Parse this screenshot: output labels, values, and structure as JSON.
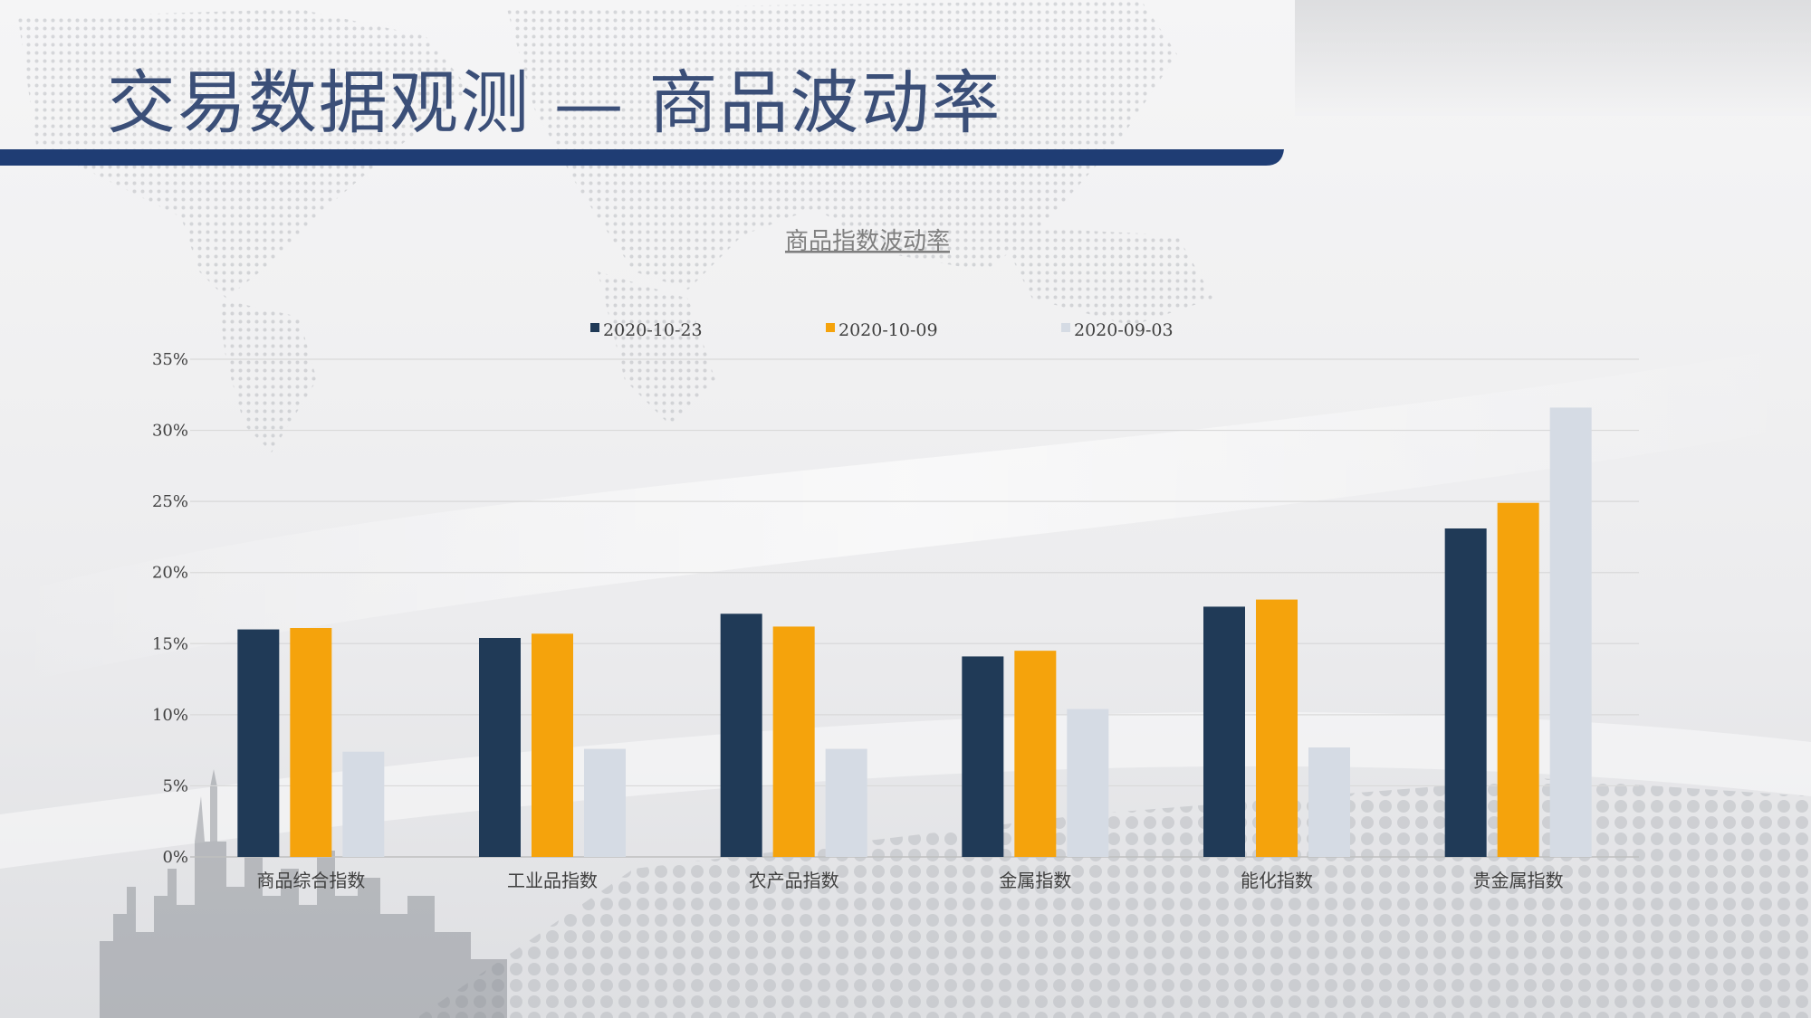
{
  "slide": {
    "title": "交易数据观测 — 商品波动率"
  },
  "colors": {
    "title_text": "#3b4f78",
    "title_bar": "#1f3d74",
    "grid": "#d9d9d9",
    "axis": "#bfbfbf"
  },
  "chart_data": {
    "type": "bar",
    "title": "商品指数波动率",
    "xlabel": "",
    "ylabel": "",
    "categories": [
      "商品综合指数",
      "工业品指数",
      "农产品指数",
      "金属指数",
      "能化指数",
      "贵金属指数"
    ],
    "series": [
      {
        "name": "2020-10-23",
        "color": "#203a57",
        "values": [
          16.0,
          15.4,
          17.1,
          14.1,
          17.6,
          23.1
        ]
      },
      {
        "name": "2020-10-09",
        "color": "#f5a30c",
        "values": [
          16.1,
          15.7,
          16.2,
          14.5,
          18.1,
          24.9
        ]
      },
      {
        "name": "2020-09-03",
        "color": "#d5dbe4",
        "values": [
          7.4,
          7.6,
          7.6,
          10.4,
          7.7,
          31.6
        ]
      }
    ],
    "ylim": [
      0,
      35
    ],
    "yticks": [
      "0%",
      "5%",
      "10%",
      "15%",
      "20%",
      "25%",
      "30%",
      "35%"
    ],
    "grid": true,
    "legend_position": "top-center"
  }
}
